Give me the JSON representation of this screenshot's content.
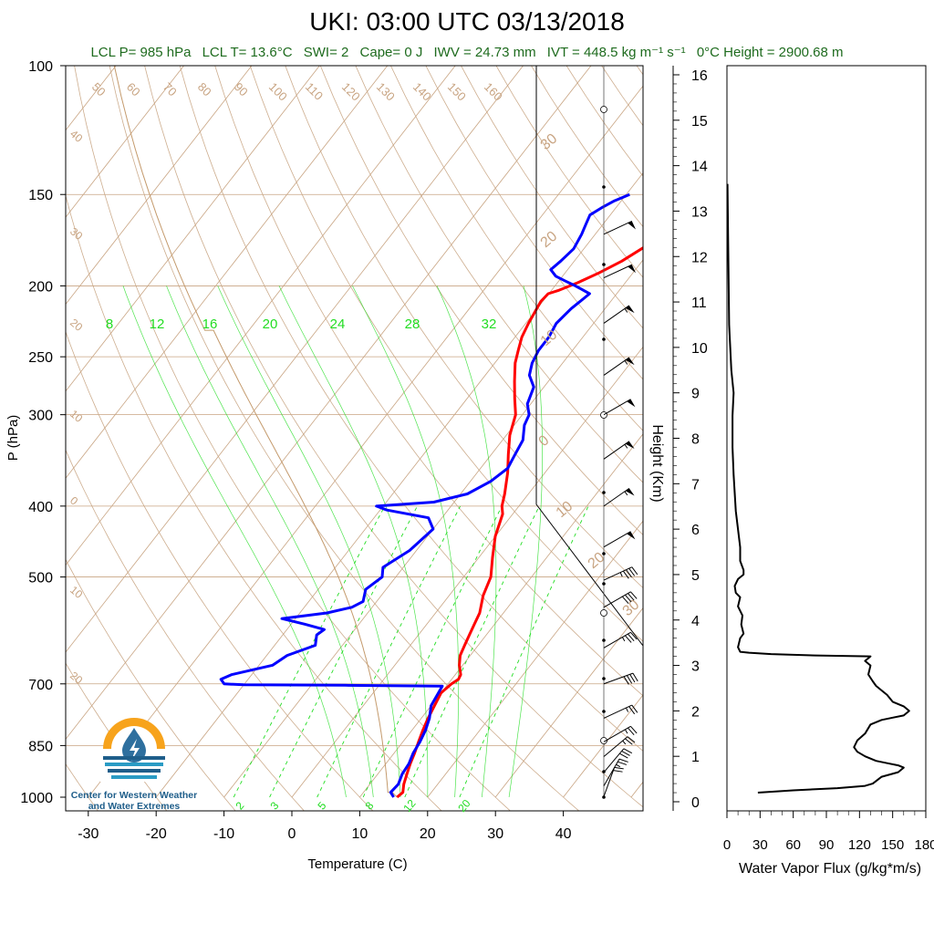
{
  "header": {
    "title": "UKI: 03:00 UTC 03/13/2018",
    "stats": [
      "LCL P= 985 hPa",
      "LCL T= 13.6°C",
      "SWI= 2",
      "Cape= 0 J",
      "IWV = 24.73 mm",
      "IVT = 448.5 kg m⁻¹ s⁻¹",
      "0°C Height = 2900.68 m"
    ]
  },
  "logo": {
    "line1": "Center for Western Weather",
    "line2": "and Water Extremes"
  },
  "colors": {
    "temperature": "#ff0000",
    "dewpoint": "#0000ff",
    "isotherm": "#c8a482",
    "mixing_ratio": "#22dd22",
    "flux": "#000000"
  },
  "chart_data": [
    {
      "type": "line",
      "title": "UKI: 03:00 UTC 03/13/2018",
      "xlabel": "Temperature (C)",
      "ylabel": "P (hPa)",
      "y_scale": "log",
      "xlim": [
        -34,
        52
      ],
      "ylim": [
        1000,
        100
      ],
      "x_ticks": [
        -30,
        -20,
        -10,
        0,
        10,
        20,
        30,
        40
      ],
      "y_ticks": [
        100,
        150,
        200,
        250,
        300,
        400,
        500,
        700,
        850,
        1000
      ],
      "isotherm_labels": [
        50,
        60,
        70,
        80,
        90,
        100,
        110,
        120,
        130,
        140,
        150,
        160
      ],
      "isotherm_labels_right": [
        30,
        20,
        10,
        0,
        -10,
        -20,
        -30
      ],
      "isotherm_labels_left": [
        40,
        30,
        20,
        10,
        0,
        -10,
        -20
      ],
      "mixing_ratio_labels_top": [
        8,
        12,
        16,
        20,
        24,
        28,
        32
      ],
      "mixing_ratio_labels_bottom": [
        2,
        3,
        5,
        8,
        12,
        20
      ],
      "series": [
        {
          "name": "Temperature",
          "points": [
            [
              15.5,
              1000
            ],
            [
              15.8,
              985
            ],
            [
              15.0,
              960
            ],
            [
              14.3,
              930
            ],
            [
              13.6,
              900
            ],
            [
              13.0,
              870
            ],
            [
              12.3,
              840
            ],
            [
              11.6,
              810
            ],
            [
              11.0,
              780
            ],
            [
              10.5,
              750
            ],
            [
              10.0,
              720
            ],
            [
              10.5,
              700
            ],
            [
              11.0,
              690
            ],
            [
              10.8,
              680
            ],
            [
              9.5,
              660
            ],
            [
              8.5,
              640
            ],
            [
              8.0,
              620
            ],
            [
              7.5,
              600
            ],
            [
              7.0,
              580
            ],
            [
              6.5,
              560
            ],
            [
              5.0,
              530
            ],
            [
              4.0,
              500
            ],
            [
              2.0,
              470
            ],
            [
              0.0,
              440
            ],
            [
              -1.5,
              410
            ],
            [
              -2.5,
              400
            ],
            [
              -3.5,
              385
            ],
            [
              -5.5,
              360
            ],
            [
              -7.5,
              340
            ],
            [
              -9.5,
              320
            ],
            [
              -11.0,
              300
            ],
            [
              -13.0,
              285
            ],
            [
              -15.0,
              270
            ],
            [
              -17.0,
              255
            ],
            [
              -18.0,
              245
            ],
            [
              -19.0,
              235
            ],
            [
              -19.6,
              225
            ],
            [
              -20.3,
              210
            ],
            [
              -20.1,
              205
            ],
            [
              -19.0,
              203
            ],
            [
              -17.0,
              198
            ],
            [
              -15.0,
              192
            ],
            [
              -13.0,
              185
            ],
            [
              -11.5,
              178
            ],
            [
              -10.0,
              171
            ],
            [
              -8.5,
              164
            ],
            [
              -7.0,
              158
            ],
            [
              -6.0,
              156
            ],
            [
              -6.0,
              153
            ],
            [
              -5.0,
              151
            ],
            [
              -4.0,
              150
            ]
          ]
        },
        {
          "name": "Dewpoint",
          "points": [
            [
              15.0,
              1000
            ],
            [
              14.0,
              985
            ],
            [
              14.2,
              960
            ],
            [
              13.6,
              930
            ],
            [
              13.4,
              900
            ],
            [
              12.8,
              870
            ],
            [
              12.5,
              840
            ],
            [
              12.0,
              810
            ],
            [
              11.2,
              780
            ],
            [
              10.0,
              750
            ],
            [
              9.6,
              720
            ],
            [
              9.4,
              705
            ],
            [
              -5.0,
              703
            ],
            [
              -20.0,
              702
            ],
            [
              -23.0,
              700
            ],
            [
              -24.0,
              690
            ],
            [
              -23.0,
              680
            ],
            [
              -18.0,
              660
            ],
            [
              -17.0,
              640
            ],
            [
              -14.0,
              620
            ],
            [
              -15.0,
              600
            ],
            [
              -14.5,
              590
            ],
            [
              -18.0,
              580
            ],
            [
              -22.0,
              570
            ],
            [
              -16.0,
              560
            ],
            [
              -13.0,
              550
            ],
            [
              -12.0,
              540
            ],
            [
              -13.0,
              520
            ],
            [
              -12.0,
              500
            ],
            [
              -13.0,
              485
            ],
            [
              -11.0,
              460
            ],
            [
              -10.0,
              430
            ],
            [
              -12.0,
              415
            ],
            [
              -19.0,
              405
            ],
            [
              -21.0,
              400
            ],
            [
              -13.0,
              395
            ],
            [
              -9.0,
              385
            ],
            [
              -7.0,
              370
            ],
            [
              -6.0,
              355
            ],
            [
              -6.5,
              340
            ],
            [
              -7.0,
              325
            ],
            [
              -8.5,
              310
            ],
            [
              -9.0,
              300
            ],
            [
              -10.5,
              290
            ],
            [
              -11.5,
              275
            ],
            [
              -13.5,
              265
            ],
            [
              -14.5,
              255
            ],
            [
              -15.0,
              245
            ],
            [
              -15.0,
              235
            ],
            [
              -15.5,
              225
            ],
            [
              -15.0,
              215
            ],
            [
              -14.0,
              205
            ],
            [
              -17.0,
              200
            ],
            [
              -19.0,
              197
            ],
            [
              -21.0,
              194
            ],
            [
              -22.5,
              190
            ],
            [
              -22.0,
              185
            ],
            [
              -21.5,
              178
            ],
            [
              -22.0,
              170
            ],
            [
              -22.5,
              165
            ],
            [
              -23.0,
              160
            ],
            [
              -22.0,
              156
            ],
            [
              -21.0,
              153
            ],
            [
              -19.5,
              150
            ]
          ]
        }
      ]
    },
    {
      "type": "line",
      "xlabel": "Water Vapor Flux (g/kg*m/s)",
      "ylabel": "Height (Km)",
      "xlim": [
        0,
        180
      ],
      "ylim": [
        0,
        16
      ],
      "x_ticks": [
        0,
        30,
        60,
        90,
        120,
        150,
        180
      ],
      "y_ticks": [
        0,
        1,
        2,
        3,
        4,
        5,
        6,
        7,
        8,
        9,
        10,
        11,
        12,
        13,
        14,
        15,
        16
      ],
      "series": [
        {
          "name": "Water Vapor Flux",
          "points": [
            [
              28,
              0.2
            ],
            [
              60,
              0.25
            ],
            [
              100,
              0.3
            ],
            [
              125,
              0.35
            ],
            [
              132,
              0.4
            ],
            [
              140,
              0.55
            ],
            [
              155,
              0.65
            ],
            [
              160,
              0.75
            ],
            [
              155,
              0.8
            ],
            [
              145,
              0.85
            ],
            [
              135,
              0.9
            ],
            [
              125,
              1.0
            ],
            [
              118,
              1.1
            ],
            [
              115,
              1.2
            ],
            [
              118,
              1.35
            ],
            [
              125,
              1.5
            ],
            [
              130,
              1.7
            ],
            [
              140,
              1.8
            ],
            [
              150,
              1.85
            ],
            [
              160,
              1.9
            ],
            [
              165,
              2.0
            ],
            [
              160,
              2.1
            ],
            [
              150,
              2.2
            ],
            [
              145,
              2.35
            ],
            [
              140,
              2.45
            ],
            [
              135,
              2.55
            ],
            [
              132,
              2.65
            ],
            [
              128,
              2.8
            ],
            [
              130,
              3.0
            ],
            [
              125,
              3.1
            ],
            [
              130,
              3.2
            ],
            [
              80,
              3.22
            ],
            [
              40,
              3.25
            ],
            [
              20,
              3.28
            ],
            [
              12,
              3.3
            ],
            [
              10,
              3.4
            ],
            [
              12,
              3.6
            ],
            [
              15,
              3.7
            ],
            [
              13,
              3.9
            ],
            [
              14,
              4.1
            ],
            [
              10,
              4.3
            ],
            [
              12,
              4.5
            ],
            [
              8,
              4.6
            ],
            [
              7,
              4.75
            ],
            [
              10,
              4.9
            ],
            [
              15,
              5.0
            ],
            [
              15,
              5.1
            ],
            [
              12,
              5.3
            ],
            [
              12,
              5.6
            ],
            [
              10,
              6.0
            ],
            [
              8,
              6.4
            ],
            [
              7,
              6.8
            ],
            [
              6,
              7.2
            ],
            [
              5,
              7.8
            ],
            [
              5,
              8.5
            ],
            [
              6,
              9.0
            ],
            [
              4,
              9.5
            ],
            [
              3,
              10.0
            ],
            [
              2,
              10.5
            ],
            [
              1.5,
              11.5
            ],
            [
              1,
              12.5
            ],
            [
              0.5,
              13.6
            ]
          ]
        }
      ]
    }
  ],
  "wind_barbs": [
    {
      "p": 998,
      "dir": 200,
      "kt": 20
    },
    {
      "p": 965,
      "dir": 210,
      "kt": 25
    },
    {
      "p": 925,
      "dir": 220,
      "kt": 30
    },
    {
      "p": 880,
      "dir": 230,
      "kt": 25
    },
    {
      "p": 840,
      "dir": 240,
      "kt": 25
    },
    {
      "p": 780,
      "dir": 245,
      "kt": 25
    },
    {
      "p": 700,
      "dir": 250,
      "kt": 40
    },
    {
      "p": 625,
      "dir": 240,
      "kt": 35
    },
    {
      "p": 550,
      "dir": 240,
      "kt": 40
    },
    {
      "p": 505,
      "dir": 245,
      "kt": 45
    },
    {
      "p": 455,
      "dir": 240,
      "kt": 50
    },
    {
      "p": 400,
      "dir": 235,
      "kt": 55
    },
    {
      "p": 345,
      "dir": 235,
      "kt": 55
    },
    {
      "p": 300,
      "dir": 240,
      "kt": 50
    },
    {
      "p": 265,
      "dir": 235,
      "kt": 55
    },
    {
      "p": 225,
      "dir": 235,
      "kt": 55
    },
    {
      "p": 195,
      "dir": 245,
      "kt": 50
    },
    {
      "p": 170,
      "dir": 245,
      "kt": 50
    }
  ]
}
